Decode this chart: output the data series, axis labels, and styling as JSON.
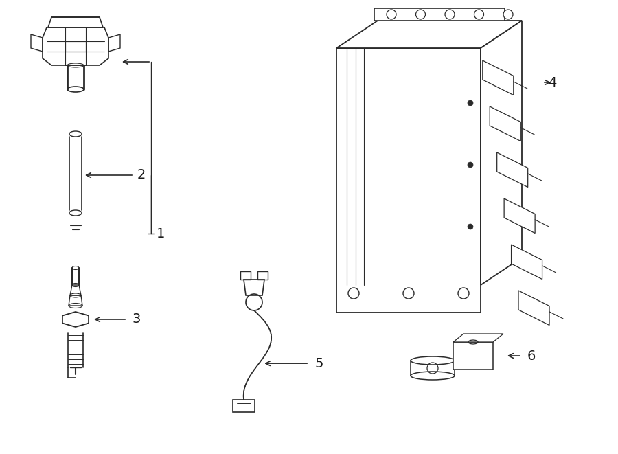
{
  "bg_color": "#ffffff",
  "line_color": "#2a2a2a",
  "label_color": "#1a1a1a",
  "fig_width": 9.0,
  "fig_height": 6.61,
  "dpi": 100
}
